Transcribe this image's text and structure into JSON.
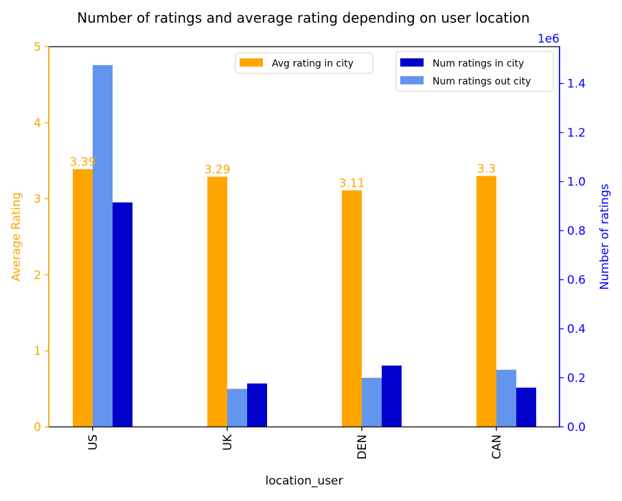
{
  "chart_data": {
    "type": "bar",
    "title": "Number of ratings and average rating depending on user location",
    "xlabel": "location_user",
    "categories": [
      "US",
      "UK",
      "DEN",
      "CAN"
    ],
    "left_axis": {
      "label": "Average Rating",
      "color": "#FFA500",
      "range": [
        0,
        5
      ],
      "ticks": [
        "0",
        "1",
        "2",
        "3",
        "4",
        "5"
      ]
    },
    "right_axis": {
      "label": "Number of ratings",
      "color": "#0000FF",
      "range": [
        0,
        1550000
      ],
      "offset_text": "1e6",
      "ticks": [
        "0.0",
        "0.2",
        "0.4",
        "0.6",
        "0.8",
        "1.0",
        "1.2",
        "1.4"
      ]
    },
    "series": [
      {
        "name": "Avg rating in city",
        "axis": "left",
        "color": "#FFA500",
        "values": [
          3.39,
          3.29,
          3.11,
          3.3
        ],
        "data_labels": [
          "3.39",
          "3.29",
          "3.11",
          "3.3"
        ]
      },
      {
        "name": "Num ratings out city",
        "axis": "right",
        "color": "#6495ED",
        "values": [
          1475000,
          155000,
          200000,
          233000
        ]
      },
      {
        "name": "Num ratings in city",
        "axis": "right",
        "color": "#0000CD",
        "values": [
          915000,
          177000,
          250000,
          160000
        ]
      }
    ],
    "legends": [
      {
        "placement": "top-center",
        "entries": [
          "Avg rating in city"
        ]
      },
      {
        "placement": "top-right",
        "entries": [
          "Num ratings in city",
          "Num ratings out city"
        ]
      }
    ],
    "grid": false
  }
}
